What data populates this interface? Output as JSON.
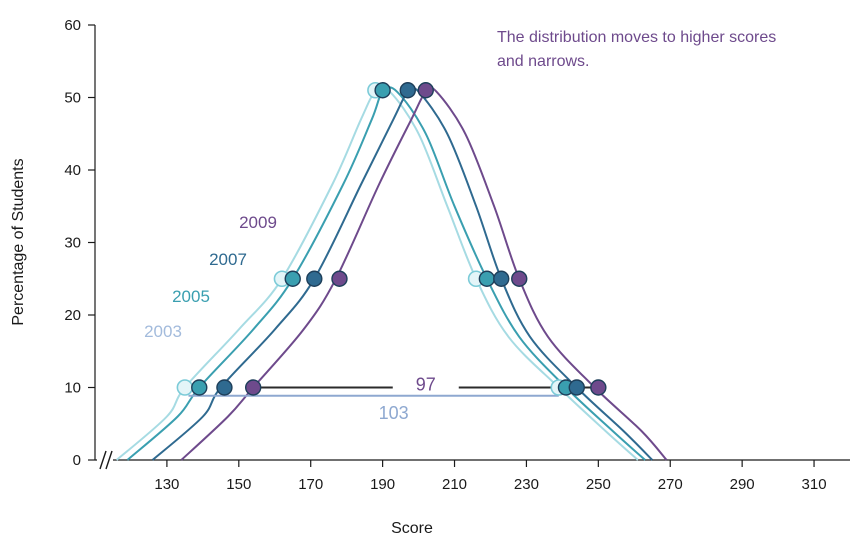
{
  "chart_data": {
    "type": "line",
    "xlabel": "Score",
    "ylabel": "Percentage of Students",
    "xlim": [
      110,
      320
    ],
    "ylim": [
      0,
      60
    ],
    "x_ticks": [
      130,
      150,
      170,
      190,
      210,
      230,
      250,
      270,
      290,
      310
    ],
    "y_ticks": [
      0,
      10,
      20,
      30,
      40,
      50,
      60
    ],
    "axis_break": true,
    "grid": false,
    "annotation": "The distribution moves to higher scores and narrows.",
    "series": [
      {
        "name": "2003",
        "color": "#a6dbe3",
        "x": [
          116,
          130,
          135,
          150,
          162,
          176,
          184,
          188,
          192,
          200,
          208,
          216,
          225,
          239,
          252,
          261
        ],
        "y": [
          0,
          6,
          10,
          18,
          25,
          38,
          47,
          50.8,
          50.8,
          45,
          35,
          25,
          17,
          10,
          4,
          0
        ],
        "markers": [
          [
            135,
            10
          ],
          [
            162,
            25
          ],
          [
            188,
            51
          ],
          [
            216,
            25
          ],
          [
            239,
            10
          ]
        ]
      },
      {
        "name": "2005",
        "color": "#3a9fb0",
        "x": [
          119,
          133,
          139,
          154,
          165,
          179,
          187,
          190,
          194,
          202,
          210,
          219,
          228,
          241,
          254,
          263
        ],
        "y": [
          0,
          6,
          10,
          18,
          25,
          38,
          47,
          50.8,
          50.8,
          45,
          35,
          25,
          17,
          10,
          4,
          0
        ],
        "markers": [
          [
            139,
            10
          ],
          [
            165,
            25
          ],
          [
            190,
            51
          ],
          [
            219,
            25
          ],
          [
            241,
            10
          ]
        ]
      },
      {
        "name": "2007",
        "color": "#2f6a90",
        "x": [
          126,
          140,
          145,
          160,
          171,
          184,
          193,
          197,
          200,
          208,
          216,
          223,
          231,
          244,
          257,
          265
        ],
        "y": [
          0,
          6,
          10,
          18,
          25,
          38,
          47,
          50.8,
          50.8,
          45,
          35,
          25,
          17,
          10,
          4,
          0
        ],
        "markers": [
          [
            146,
            10
          ],
          [
            171,
            25
          ],
          [
            197,
            51
          ],
          [
            223,
            25
          ],
          [
            244,
            10
          ]
        ]
      },
      {
        "name": "2009",
        "color": "#6e4a8c",
        "x": [
          134,
          147,
          154,
          168,
          177,
          189,
          198,
          202,
          205,
          213,
          221,
          228,
          236,
          249,
          262,
          269
        ],
        "y": [
          0,
          6,
          10,
          18,
          25,
          38,
          47,
          50.8,
          50.8,
          45,
          35,
          25,
          17,
          10,
          4,
          0
        ],
        "markers": [
          [
            154,
            10
          ],
          [
            178,
            25
          ],
          [
            202,
            51
          ],
          [
            228,
            25
          ],
          [
            250,
            10
          ]
        ]
      }
    ],
    "ranges": [
      {
        "label": "97",
        "x1": 154,
        "x2": 250,
        "y": 10,
        "color": "#2b2b2b",
        "label_color": "#6e4a8c"
      },
      {
        "label": "103",
        "x1": 136,
        "x2": 239,
        "y": 9,
        "color": "#8ea8d0",
        "label_color": "#8ea8d0"
      }
    ]
  }
}
